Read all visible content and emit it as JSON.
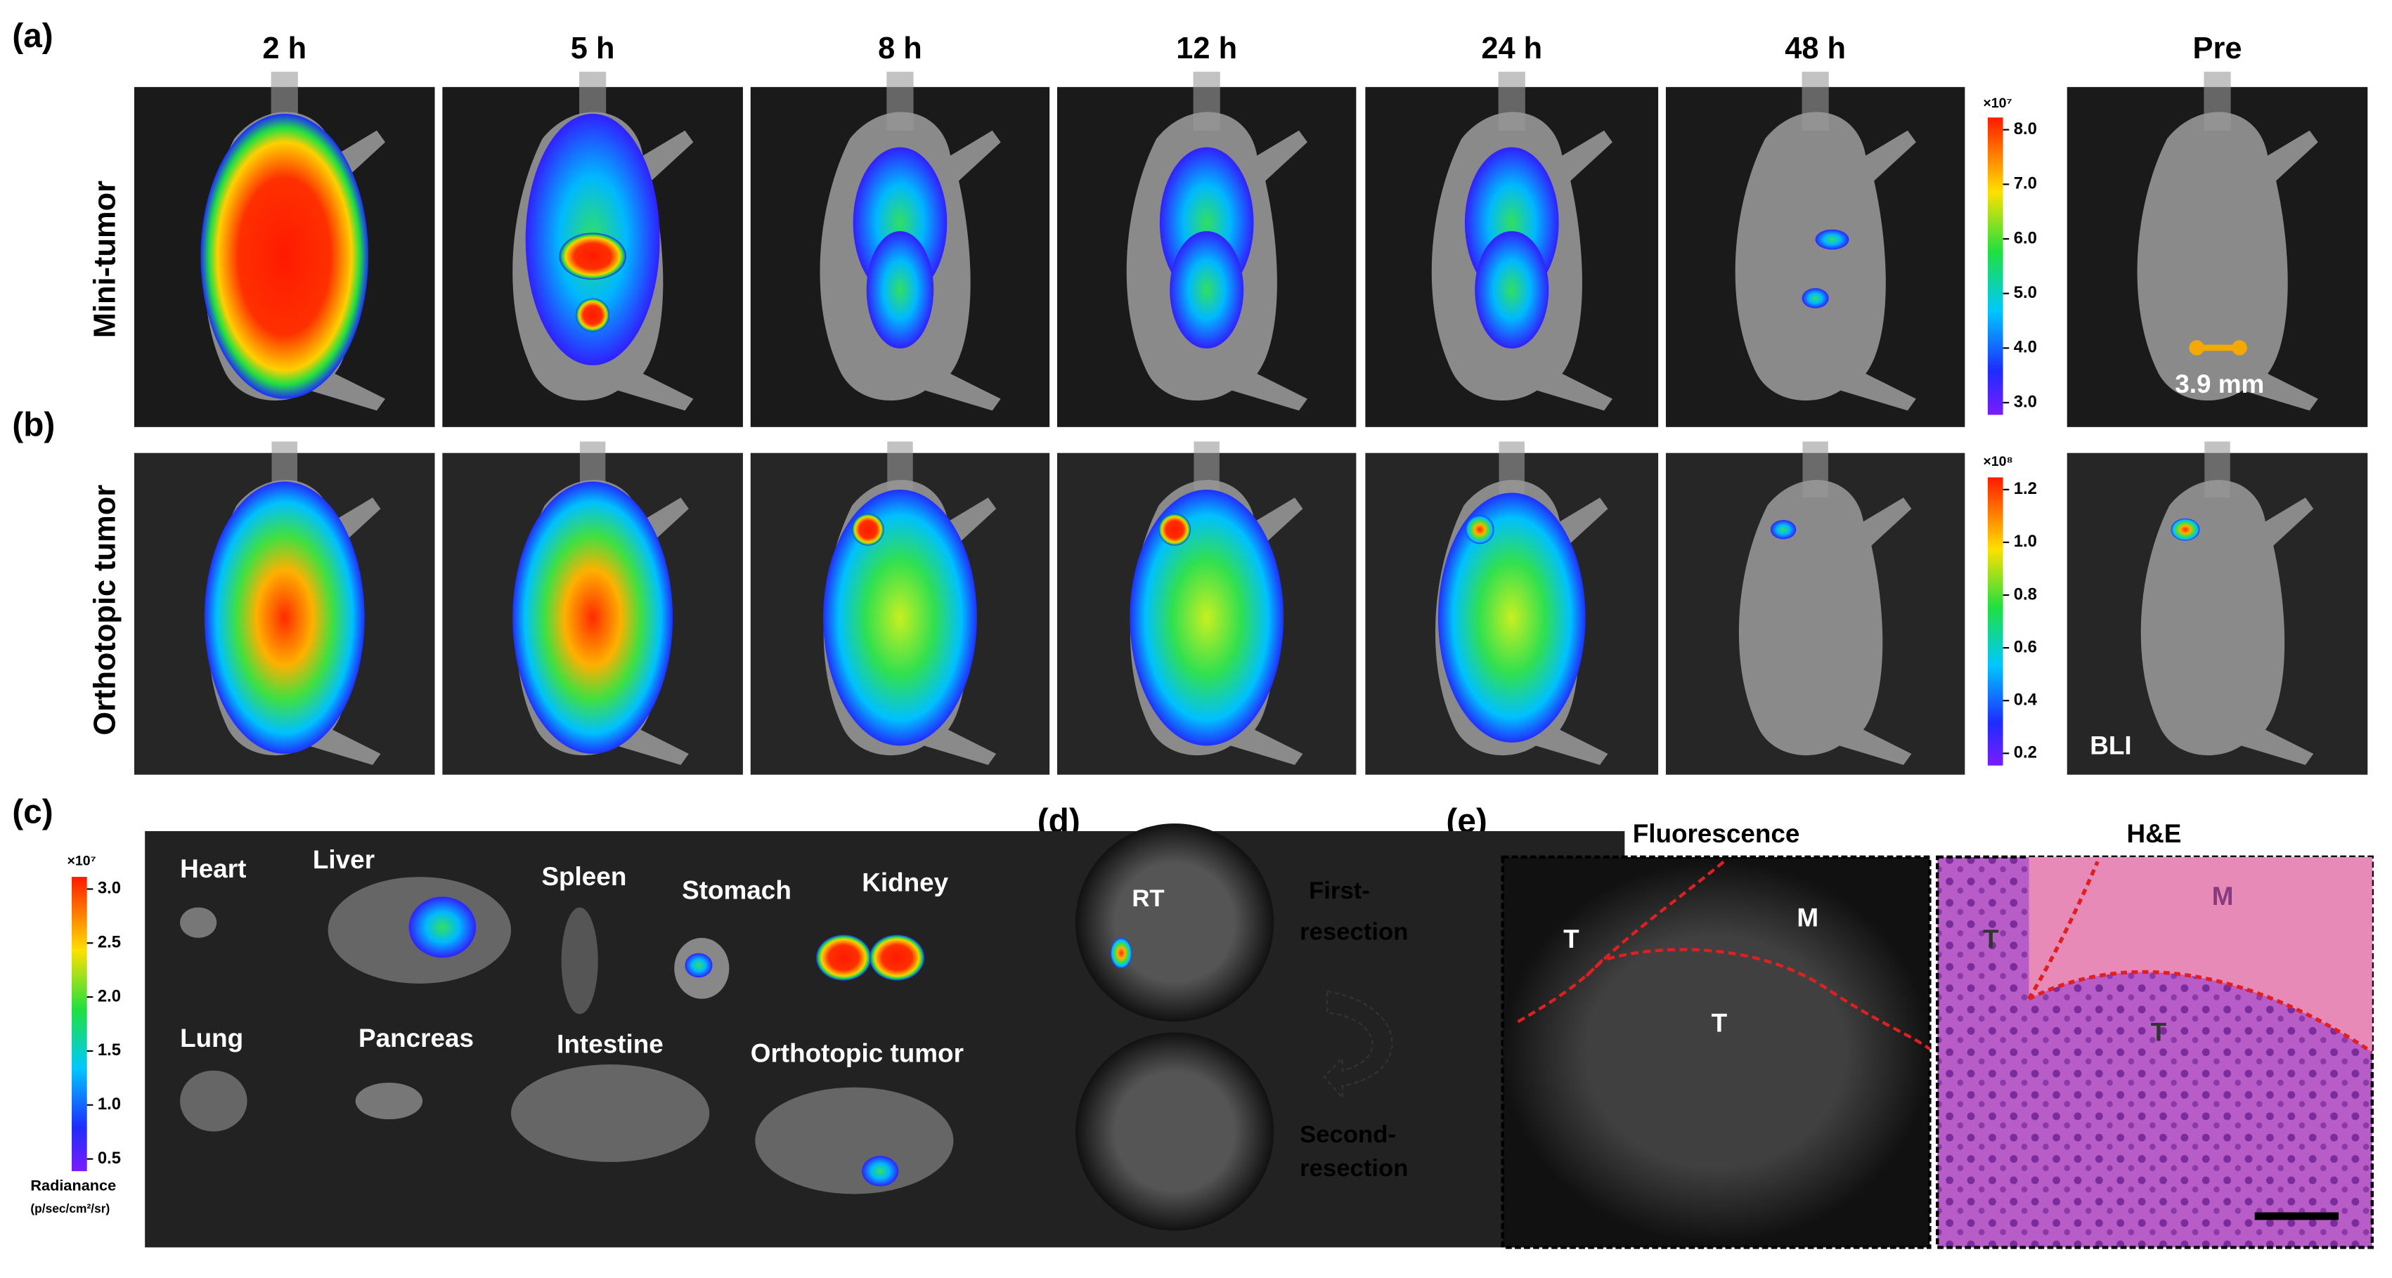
{
  "panel_labels": [
    "(a)",
    "(b)",
    "(c)",
    "(d)",
    "(e)"
  ],
  "time_labels": [
    "2 h",
    "5 h",
    "8 h",
    "12 h",
    "24 h",
    "48 h",
    "Pre"
  ],
  "row_labels": [
    "Mini-tumor",
    "Orthotopic tumor"
  ],
  "colorbar_a": {
    "exponent": "×10⁷",
    "ticks": [
      "8.0",
      "7.0",
      "6.0",
      "5.0",
      "4.0",
      "3.0"
    ]
  },
  "colorbar_b": {
    "exponent": "×10⁸",
    "ticks": [
      "1.2",
      "1.0",
      "0.8",
      "0.6",
      "0.4",
      "0.2"
    ]
  },
  "annotations": {
    "size": "3.9 mm",
    "bli": "BLI"
  },
  "panel_c": {
    "colorbar": {
      "exponent": "×10⁷",
      "ticks": [
        "3.0",
        "2.5",
        "2.0",
        "1.5",
        "1.0",
        "0.5"
      ],
      "label": "Radianance",
      "unit": "(p/sec/cm²/sr)"
    },
    "organs": [
      "Heart",
      "Liver",
      "Spleen",
      "Stomach",
      "Kidney",
      "Lung",
      "Pancreas",
      "Intestine",
      "Orthotopic tumor"
    ]
  },
  "panel_d": {
    "rt": "RT",
    "first": [
      "First-",
      "resection"
    ],
    "second": [
      "Second-",
      "resection"
    ]
  },
  "panel_e": {
    "titles": [
      "Fluorescence",
      "H&E"
    ],
    "fluorescence_labels": [
      "T",
      "M",
      "T"
    ],
    "he_labels": [
      "T",
      "M",
      "T"
    ]
  }
}
